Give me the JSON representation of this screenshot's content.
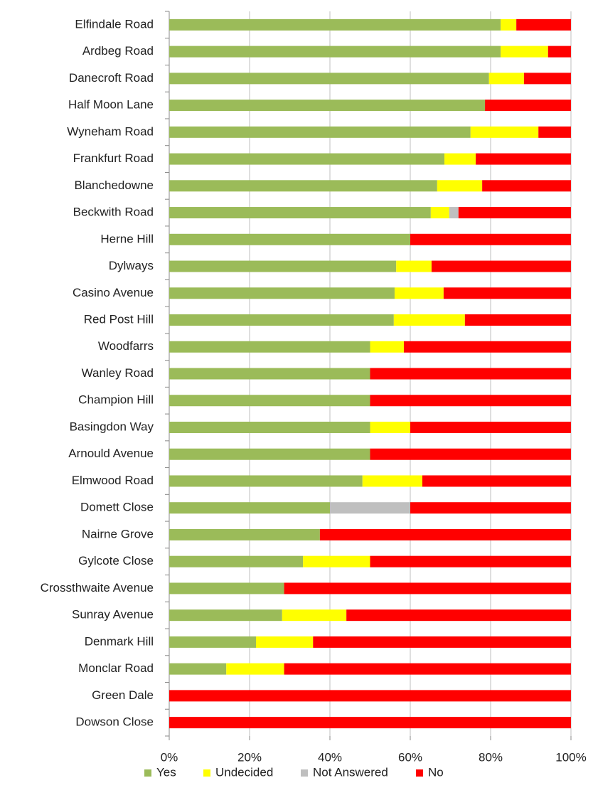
{
  "chart_data": {
    "type": "stacked_barh",
    "categories": [
      "Elfindale Road",
      "Ardbeg Road",
      "Danecroft Road",
      "Half Moon Lane",
      "Wyneham Road",
      "Frankfurt Road",
      "Blanchedowne",
      "Beckwith Road",
      "Herne Hill",
      "Dylways",
      "Casino Avenue",
      "Red Post Hill",
      "Woodfarrs",
      "Wanley Road",
      "Champion Hill",
      "Basingdon Way",
      "Arnould Avenue",
      "Elmwood Road",
      "Domett Close",
      "Nairne Grove",
      "Gylcote Close",
      "Crossthwaite Avenue",
      "Sunray Avenue",
      "Denmark Hill",
      "Monclar Road",
      "Green Dale",
      "Dowson Close"
    ],
    "series": [
      {
        "name": "Yes",
        "color": "#9bbb59",
        "values": [
          82.5,
          82.5,
          79.6,
          78.6,
          75,
          68.5,
          66.7,
          65.1,
          60,
          56.5,
          56.1,
          55.9,
          50,
          50,
          50,
          50,
          50,
          48.1,
          40,
          37.5,
          33.3,
          28.6,
          28.1,
          21.6,
          14.2,
          0,
          0
        ]
      },
      {
        "name": "Undecided",
        "color": "#ffff00",
        "values": [
          3.9,
          11.8,
          8.7,
          0,
          16.9,
          7.8,
          11.2,
          4.6,
          0,
          8.8,
          12.2,
          17.7,
          8.4,
          0,
          0,
          10,
          0,
          14.9,
          0,
          0,
          16.7,
          0,
          16,
          14.2,
          14.4,
          0,
          0
        ]
      },
      {
        "name": "Not Answered",
        "color": "#bfbfbf",
        "values": [
          0,
          0,
          0,
          0,
          0,
          0,
          0,
          2.3,
          0,
          0,
          0,
          0,
          0,
          0,
          0,
          0,
          0,
          0,
          20,
          0,
          0,
          0,
          0,
          0,
          0,
          0,
          0
        ]
      },
      {
        "name": "No",
        "color": "#ff0000",
        "values": [
          13.6,
          5.7,
          11.7,
          21.4,
          8.1,
          23.7,
          22.1,
          28,
          40,
          34.7,
          31.7,
          26.4,
          41.6,
          50,
          50,
          40,
          50,
          37,
          40,
          62.5,
          50,
          71.4,
          55.9,
          64.2,
          71.4,
          100,
          100
        ]
      }
    ],
    "xlim": [
      0,
      100
    ],
    "xticks": [
      {
        "value": 0,
        "label": "0%"
      },
      {
        "value": 20,
        "label": "20%"
      },
      {
        "value": 40,
        "label": "40%"
      },
      {
        "value": 60,
        "label": "60%"
      },
      {
        "value": 80,
        "label": "80%"
      },
      {
        "value": 100,
        "label": "100%"
      }
    ],
    "grid": true,
    "legend": "bottom"
  }
}
